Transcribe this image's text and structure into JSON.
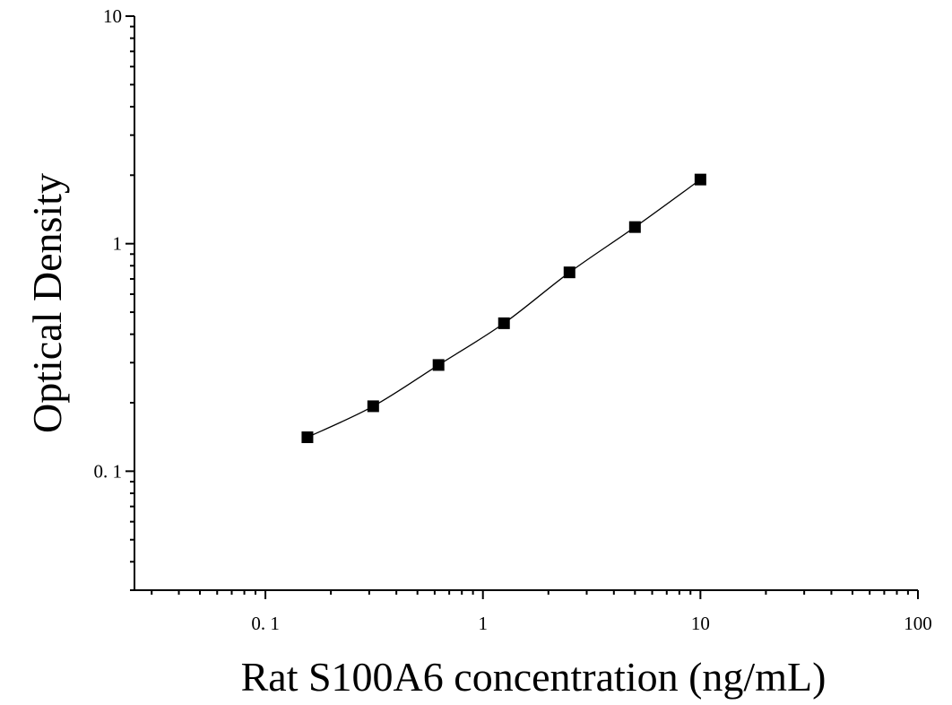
{
  "chart_data": {
    "type": "scatter",
    "title": "",
    "xlabel": "Rat S100A6 concentration (ng/mL)",
    "ylabel": "Optical Density",
    "x_scale": "log",
    "y_scale": "log",
    "xlim": [
      0.025,
      100
    ],
    "ylim": [
      0.03,
      10
    ],
    "x_ticks": [
      {
        "value": 0.1,
        "label": "0. 1"
      },
      {
        "value": 1,
        "label": "1"
      },
      {
        "value": 10,
        "label": "10"
      },
      {
        "value": 100,
        "label": "100"
      }
    ],
    "y_ticks": [
      {
        "value": 0.1,
        "label": "0. 1"
      },
      {
        "value": 1,
        "label": "1"
      },
      {
        "value": 10,
        "label": "10"
      }
    ],
    "grid": false,
    "legend": "none",
    "series": [
      {
        "marker": "square",
        "fit_line": true,
        "x": [
          0.156,
          0.313,
          0.625,
          1.25,
          2.5,
          5,
          10
        ],
        "y": [
          0.141,
          0.193,
          0.293,
          0.447,
          0.748,
          1.183,
          1.914
        ]
      }
    ],
    "colors": {
      "marker": "#000000",
      "line": "#000000"
    }
  }
}
